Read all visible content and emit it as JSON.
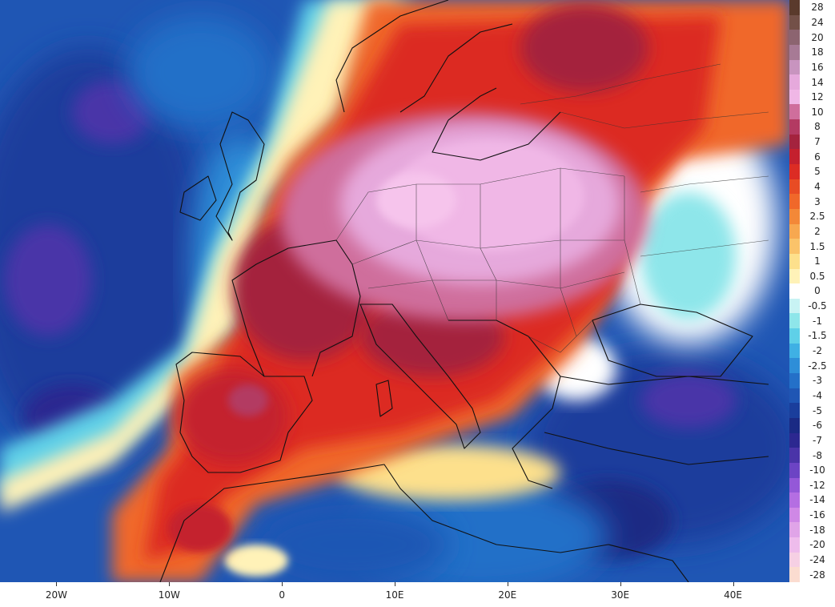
{
  "map": {
    "x_axis_ticks": [
      {
        "label": "20W",
        "lon": -20
      },
      {
        "label": "10W",
        "lon": -10
      },
      {
        "label": "0",
        "lon": 0
      },
      {
        "label": "10E",
        "lon": 10
      },
      {
        "label": "20E",
        "lon": 20
      },
      {
        "label": "30E",
        "lon": 30
      },
      {
        "label": "40E",
        "lon": 40
      }
    ],
    "lon_range": [
      -25,
      45
    ],
    "legend": [
      {
        "label": "28",
        "color": "#5a3a2c"
      },
      {
        "label": "24",
        "color": "#735048"
      },
      {
        "label": "20",
        "color": "#8c6470"
      },
      {
        "label": "18",
        "color": "#a77a95"
      },
      {
        "label": "16",
        "color": "#c894bf"
      },
      {
        "label": "14",
        "color": "#e6a9dc"
      },
      {
        "label": "12",
        "color": "#f0b7e6"
      },
      {
        "label": "10",
        "color": "#cf6e9c"
      },
      {
        "label": "8",
        "color": "#b33a62"
      },
      {
        "label": "7",
        "color": "#a4233e"
      },
      {
        "label": "6",
        "color": "#c4202e"
      },
      {
        "label": "5",
        "color": "#dc2c24"
      },
      {
        "label": "4",
        "color": "#e84c24"
      },
      {
        "label": "3",
        "color": "#f0682a"
      },
      {
        "label": "2.5",
        "color": "#f38838"
      },
      {
        "label": "2",
        "color": "#f7a850"
      },
      {
        "label": "1.5",
        "color": "#fac36a"
      },
      {
        "label": "1",
        "color": "#fde08c"
      },
      {
        "label": "0.5",
        "color": "#fff2b8"
      },
      {
        "label": "0",
        "color": "#ffffff"
      },
      {
        "label": "-0.5",
        "color": "#c8f3f4"
      },
      {
        "label": "-1",
        "color": "#8ee6ea"
      },
      {
        "label": "-1.5",
        "color": "#5fd0e8"
      },
      {
        "label": "-2",
        "color": "#3fb0e4"
      },
      {
        "label": "-2.5",
        "color": "#2e8ed8"
      },
      {
        "label": "-3",
        "color": "#2470c8"
      },
      {
        "label": "-4",
        "color": "#1f56b4"
      },
      {
        "label": "-5",
        "color": "#1a3e9c"
      },
      {
        "label": "-6",
        "color": "#1a2a84"
      },
      {
        "label": "-7",
        "color": "#2c2890"
      },
      {
        "label": "-8",
        "color": "#4a34a8"
      },
      {
        "label": "-10",
        "color": "#6c44c4"
      },
      {
        "label": "-12",
        "color": "#9458d8"
      },
      {
        "label": "-14",
        "color": "#b46ee2"
      },
      {
        "label": "-16",
        "color": "#cf88e6"
      },
      {
        "label": "-18",
        "color": "#e0a4e8"
      },
      {
        "label": "-20",
        "color": "#eebcec"
      },
      {
        "label": "-24",
        "color": "#f6d0e4"
      },
      {
        "label": "-28",
        "color": "#fbdcd0"
      }
    ]
  }
}
